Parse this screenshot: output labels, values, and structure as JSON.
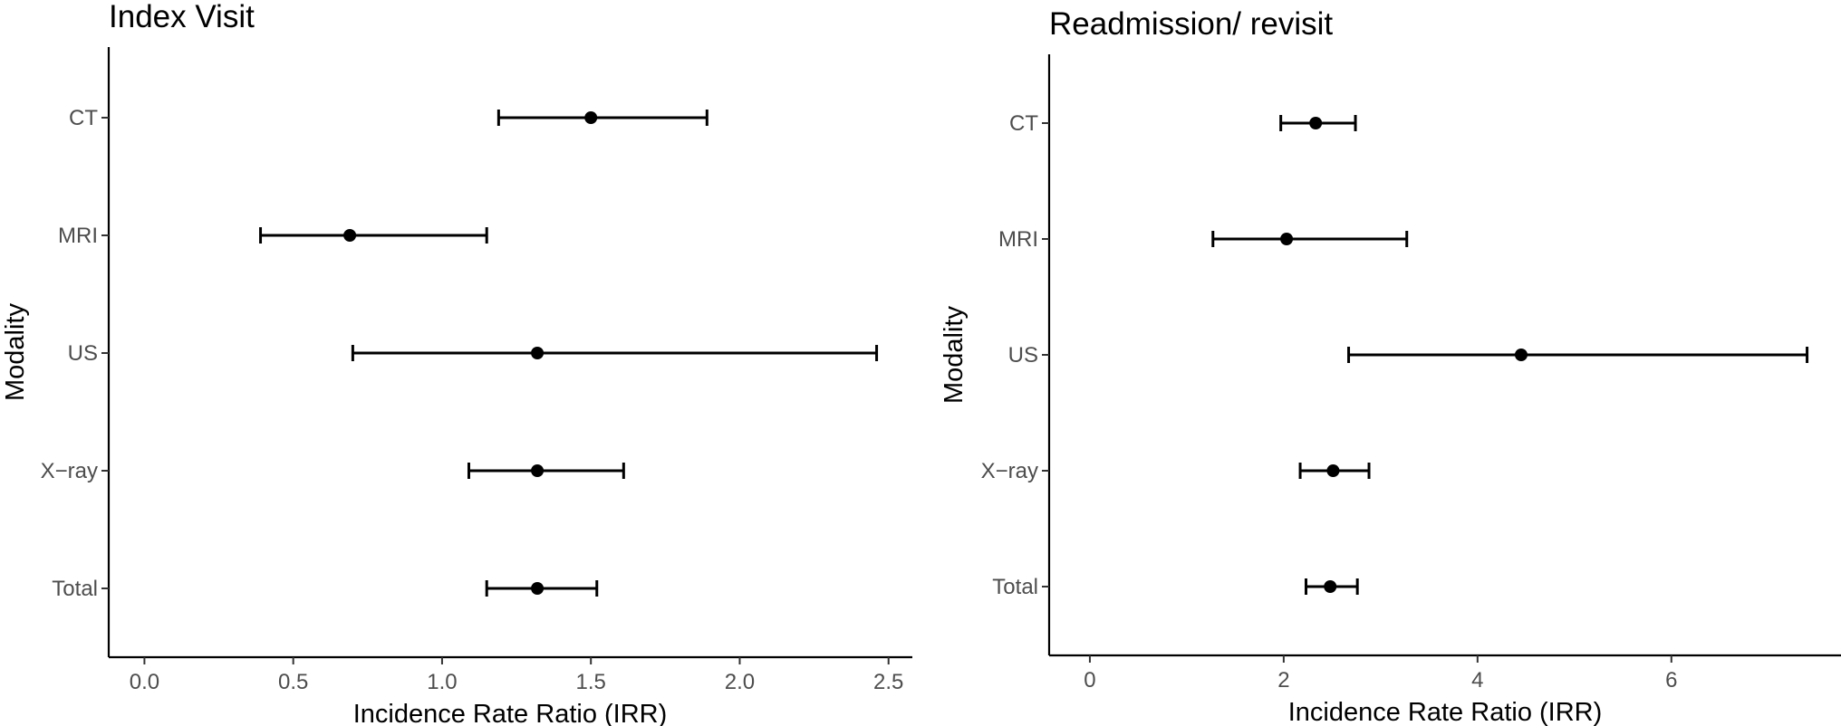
{
  "chart_data": [
    {
      "type": "forest",
      "title": "Index Visit",
      "xlabel": "Incidence Rate Ratio (IRR)",
      "ylabel": "Modality",
      "categories": [
        "CT",
        "MRI",
        "US",
        "X−ray",
        "Total"
      ],
      "estimate": [
        1.5,
        0.69,
        1.32,
        1.32,
        1.32
      ],
      "lower": [
        1.19,
        0.39,
        0.7,
        1.09,
        1.15
      ],
      "upper": [
        1.89,
        1.15,
        2.46,
        1.61,
        1.52
      ],
      "xlim": [
        -0.12,
        2.58
      ],
      "xticks": [
        0.0,
        0.5,
        1.0,
        1.5,
        2.0,
        2.5
      ],
      "xtick_labels": [
        "0.0",
        "0.5",
        "1.0",
        "1.5",
        "2.0",
        "2.5"
      ],
      "grid": false
    },
    {
      "type": "forest",
      "title": "Readmission/ revisit",
      "xlabel": "Incidence Rate Ratio (IRR)",
      "ylabel": "Modality",
      "categories": [
        "CT",
        "MRI",
        "US",
        "X−ray",
        "Total"
      ],
      "estimate": [
        2.33,
        2.03,
        4.45,
        2.51,
        2.48
      ],
      "lower": [
        1.97,
        1.27,
        2.67,
        2.17,
        2.23
      ],
      "upper": [
        2.74,
        3.27,
        7.4,
        2.88,
        2.76
      ],
      "xlim": [
        -0.42,
        7.75
      ],
      "xticks": [
        0,
        2,
        4,
        6
      ],
      "xtick_labels": [
        "0",
        "2",
        "4",
        "6"
      ],
      "grid": false
    }
  ]
}
